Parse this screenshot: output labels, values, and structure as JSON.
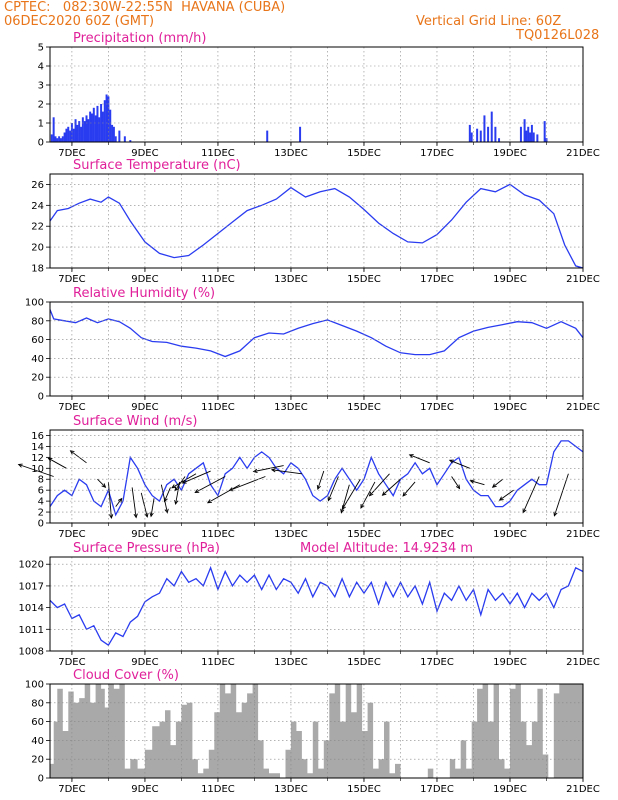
{
  "header": {
    "line1": "CPTEC:   082:30W-22:55N  HAVANA (CUBA)",
    "line2": "06DEC2020 60Z (GMT)",
    "right1": "Vertical Grid Line: 60Z",
    "right2": "TQ0126L028"
  },
  "colors": {
    "header": "#e8751a",
    "title": "#e0209a",
    "line": "#2a3cf0",
    "bar": "#2a3cf0",
    "cloud": "#a9a9a9"
  },
  "chart_data": [
    {
      "type": "bar",
      "title": "Precipitation (mm/h)",
      "x_ticks": [
        "7DEC",
        "9DEC",
        "11DEC",
        "13DEC",
        "15DEC",
        "17DEC",
        "19DEC",
        "21DEC"
      ],
      "x_range_days": [
        6.4,
        21.0
      ],
      "ylim": [
        0,
        5
      ],
      "y_ticks": [
        0,
        1,
        2,
        3,
        4,
        5
      ],
      "x": [
        6.45,
        6.5,
        6.55,
        6.6,
        6.65,
        6.7,
        6.75,
        6.8,
        6.85,
        6.9,
        6.95,
        7.0,
        7.05,
        7.1,
        7.15,
        7.2,
        7.25,
        7.3,
        7.35,
        7.4,
        7.45,
        7.5,
        7.55,
        7.6,
        7.65,
        7.7,
        7.75,
        7.8,
        7.85,
        7.9,
        7.95,
        8.0,
        8.05,
        8.1,
        8.15,
        8.2,
        8.3,
        8.45,
        8.6,
        12.35,
        13.25,
        17.9,
        17.95,
        18.1,
        18.2,
        18.3,
        18.4,
        18.5,
        18.6,
        18.7,
        19.3,
        19.4,
        19.45,
        19.5,
        19.55,
        19.6,
        19.65,
        19.75,
        19.95,
        20.0
      ],
      "values": [
        0.4,
        1.3,
        0.3,
        0.2,
        0.3,
        0.2,
        0.3,
        0.5,
        0.7,
        0.8,
        0.6,
        1.0,
        0.7,
        1.2,
        0.9,
        1.1,
        0.8,
        1.3,
        1.1,
        1.4,
        1.2,
        1.6,
        1.5,
        1.8,
        1.4,
        1.9,
        1.3,
        2.0,
        1.6,
        2.2,
        2.5,
        2.4,
        1.7,
        0.9,
        0.8,
        0.3,
        0.6,
        0.3,
        0.1,
        0.6,
        0.8,
        0.9,
        0.5,
        0.7,
        0.6,
        1.4,
        0.8,
        1.6,
        0.8,
        0.2,
        0.8,
        1.2,
        0.6,
        0.8,
        0.5,
        0.9,
        0.5,
        0.4,
        1.1,
        0.2
      ]
    },
    {
      "type": "line",
      "title": "Surface Temperature (nC)",
      "x_ticks": [
        "7DEC",
        "9DEC",
        "11DEC",
        "13DEC",
        "15DEC",
        "17DEC",
        "19DEC",
        "21DEC"
      ],
      "x_range_days": [
        6.4,
        21.0
      ],
      "ylim": [
        18,
        27
      ],
      "y_ticks": [
        18,
        20,
        22,
        24,
        26
      ],
      "x": [
        6.4,
        6.6,
        6.9,
        7.2,
        7.5,
        7.8,
        8.0,
        8.3,
        8.6,
        9.0,
        9.4,
        9.8,
        10.2,
        10.6,
        11.0,
        11.4,
        11.8,
        12.2,
        12.6,
        13.0,
        13.4,
        13.8,
        14.2,
        14.6,
        15.0,
        15.4,
        15.8,
        16.2,
        16.6,
        17.0,
        17.4,
        17.8,
        18.2,
        18.6,
        19.0,
        19.4,
        19.8,
        20.2,
        20.5,
        20.8,
        21.0
      ],
      "values": [
        22.5,
        23.5,
        23.7,
        24.2,
        24.6,
        24.3,
        24.8,
        24.2,
        22.5,
        20.5,
        19.4,
        19.0,
        19.2,
        20.2,
        21.3,
        22.4,
        23.5,
        24.0,
        24.6,
        25.7,
        24.8,
        25.3,
        25.6,
        24.8,
        23.6,
        22.3,
        21.3,
        20.5,
        20.4,
        21.2,
        22.6,
        24.3,
        25.6,
        25.3,
        26.0,
        25.0,
        24.5,
        23.2,
        20.2,
        18.2,
        18.0
      ]
    },
    {
      "type": "line",
      "title": "Relative Humidity (%)",
      "x_ticks": [
        "7DEC",
        "9DEC",
        "11DEC",
        "13DEC",
        "15DEC",
        "17DEC",
        "19DEC",
        "21DEC"
      ],
      "x_range_days": [
        6.4,
        21.0
      ],
      "ylim": [
        0,
        100
      ],
      "y_ticks": [
        0,
        20,
        40,
        60,
        80,
        100
      ],
      "x": [
        6.4,
        6.5,
        6.8,
        7.1,
        7.4,
        7.7,
        8.0,
        8.3,
        8.6,
        8.9,
        9.2,
        9.6,
        10.0,
        10.4,
        10.8,
        11.2,
        11.6,
        12.0,
        12.4,
        12.8,
        13.2,
        13.6,
        14.0,
        14.4,
        14.8,
        15.2,
        15.6,
        16.0,
        16.4,
        16.8,
        17.2,
        17.6,
        18.0,
        18.4,
        18.8,
        19.2,
        19.6,
        20.0,
        20.4,
        20.8,
        21.0
      ],
      "values": [
        92,
        82,
        80,
        78,
        83,
        78,
        82,
        79,
        72,
        62,
        58,
        57,
        53,
        51,
        48,
        42,
        48,
        62,
        67,
        66,
        72,
        77,
        81,
        75,
        69,
        62,
        53,
        46,
        44,
        44,
        48,
        62,
        69,
        73,
        76,
        79,
        78,
        72,
        79,
        72,
        62
      ]
    },
    {
      "type": "line",
      "title": "Surface Wind (m/s)",
      "x_ticks": [
        "7DEC",
        "9DEC",
        "11DEC",
        "13DEC",
        "15DEC",
        "17DEC",
        "19DEC",
        "21DEC"
      ],
      "x_range_days": [
        6.4,
        21.0
      ],
      "ylim": [
        0,
        17
      ],
      "y_ticks": [
        0,
        2,
        4,
        6,
        8,
        10,
        12,
        14,
        16
      ],
      "x": [
        6.4,
        6.6,
        6.8,
        7.0,
        7.2,
        7.4,
        7.6,
        7.8,
        8.0,
        8.2,
        8.4,
        8.6,
        8.8,
        9.0,
        9.2,
        9.4,
        9.6,
        9.8,
        10.0,
        10.2,
        10.4,
        10.6,
        10.8,
        11.0,
        11.2,
        11.4,
        11.6,
        11.8,
        12.0,
        12.2,
        12.4,
        12.6,
        12.8,
        13.0,
        13.2,
        13.4,
        13.6,
        13.8,
        14.0,
        14.2,
        14.4,
        14.6,
        14.8,
        15.0,
        15.2,
        15.4,
        15.6,
        15.8,
        16.0,
        16.2,
        16.4,
        16.6,
        16.8,
        17.0,
        17.2,
        17.4,
        17.6,
        17.8,
        18.0,
        18.2,
        18.4,
        18.6,
        18.8,
        19.0,
        19.2,
        19.4,
        19.6,
        19.8,
        20.0,
        20.2,
        20.4,
        20.6,
        20.8,
        21.0
      ],
      "values": [
        3,
        5,
        6,
        5,
        8,
        7,
        4,
        3,
        6,
        1.5,
        4,
        12,
        10,
        7,
        5,
        4,
        7,
        8,
        6,
        9,
        10,
        11,
        7,
        5,
        9,
        10,
        12,
        10,
        12,
        13,
        12,
        10,
        9,
        11,
        10,
        8,
        5,
        4,
        5,
        8,
        10,
        8,
        6,
        8,
        12,
        9,
        7,
        5,
        8,
        9,
        11,
        9,
        10,
        7,
        9,
        11,
        12,
        8,
        6,
        5,
        5,
        3,
        3,
        4,
        6,
        7,
        8,
        7,
        7,
        13,
        15,
        15,
        14,
        13
      ]
    },
    {
      "type": "line",
      "title": "Surface Pressure (hPa)",
      "annotation": "Model Altitude: 14.9234 m",
      "x_ticks": [
        "7DEC",
        "9DEC",
        "11DEC",
        "13DEC",
        "15DEC",
        "17DEC",
        "19DEC",
        "21DEC"
      ],
      "x_range_days": [
        6.4,
        21.0
      ],
      "ylim": [
        1008,
        1021
      ],
      "y_ticks": [
        1008,
        1011,
        1014,
        1017,
        1020
      ],
      "x": [
        6.4,
        6.6,
        6.8,
        7.0,
        7.2,
        7.4,
        7.6,
        7.8,
        8.0,
        8.2,
        8.4,
        8.6,
        8.8,
        9.0,
        9.2,
        9.4,
        9.6,
        9.8,
        10.0,
        10.2,
        10.4,
        10.6,
        10.8,
        11.0,
        11.2,
        11.4,
        11.6,
        11.8,
        12.0,
        12.2,
        12.4,
        12.6,
        12.8,
        13.0,
        13.2,
        13.4,
        13.6,
        13.8,
        14.0,
        14.2,
        14.4,
        14.6,
        14.8,
        15.0,
        15.2,
        15.4,
        15.6,
        15.8,
        16.0,
        16.2,
        16.4,
        16.6,
        16.8,
        17.0,
        17.2,
        17.4,
        17.6,
        17.8,
        18.0,
        18.2,
        18.4,
        18.6,
        18.8,
        19.0,
        19.2,
        19.4,
        19.6,
        19.8,
        20.0,
        20.2,
        20.4,
        20.6,
        20.8,
        21.0
      ],
      "values": [
        1015.0,
        1014.0,
        1014.5,
        1012.5,
        1013.0,
        1011.0,
        1011.5,
        1009.5,
        1008.8,
        1010.5,
        1010.0,
        1012.0,
        1012.8,
        1014.8,
        1015.5,
        1016.0,
        1018.0,
        1017.0,
        1019.0,
        1017.5,
        1018.0,
        1017.0,
        1019.5,
        1016.5,
        1019.0,
        1017.0,
        1018.5,
        1017.5,
        1018.5,
        1016.5,
        1018.5,
        1016.5,
        1018.0,
        1017.5,
        1016.0,
        1018.0,
        1015.5,
        1017.5,
        1017.0,
        1015.5,
        1018.0,
        1015.5,
        1017.5,
        1016.0,
        1017.5,
        1014.5,
        1017.5,
        1015.5,
        1017.5,
        1015.5,
        1017.0,
        1014.5,
        1017.5,
        1013.5,
        1016.0,
        1015.0,
        1017.0,
        1015.0,
        1016.5,
        1013.0,
        1016.5,
        1015.0,
        1016.0,
        1014.5,
        1016.0,
        1014.0,
        1016.0,
        1015.0,
        1016.0,
        1014.0,
        1016.5,
        1017.0,
        1019.5,
        1019.0
      ]
    },
    {
      "type": "area",
      "title": "Cloud Cover (%)",
      "x_ticks": [
        "7DEC",
        "9DEC",
        "11DEC",
        "13DEC",
        "15DEC",
        "17DEC",
        "19DEC",
        "21DEC"
      ],
      "x_range_days": [
        6.4,
        21.0
      ],
      "ylim": [
        0,
        100
      ],
      "y_ticks": [
        0,
        20,
        40,
        60,
        80,
        100
      ],
      "x": [
        6.4,
        6.5,
        6.6,
        6.75,
        6.9,
        7.05,
        7.2,
        7.35,
        7.5,
        7.65,
        7.8,
        7.9,
        8.0,
        8.15,
        8.3,
        8.45,
        8.6,
        8.8,
        9.0,
        9.2,
        9.4,
        9.55,
        9.7,
        9.85,
        10.0,
        10.15,
        10.3,
        10.45,
        10.6,
        10.75,
        10.9,
        11.05,
        11.2,
        11.35,
        11.5,
        11.65,
        11.8,
        11.95,
        12.1,
        12.25,
        12.4,
        12.55,
        12.7,
        12.85,
        13.0,
        13.15,
        13.3,
        13.45,
        13.6,
        13.75,
        13.9,
        14.05,
        14.2,
        14.35,
        14.5,
        14.65,
        14.8,
        14.95,
        15.1,
        15.25,
        15.4,
        15.55,
        15.7,
        15.85,
        16.0,
        16.15,
        16.3,
        16.45,
        16.6,
        16.75,
        16.9,
        17.05,
        17.2,
        17.35,
        17.5,
        17.65,
        17.8,
        17.95,
        18.1,
        18.25,
        18.4,
        18.55,
        18.7,
        18.85,
        19.0,
        19.15,
        19.3,
        19.45,
        19.6,
        19.75,
        19.9,
        20.05,
        20.2,
        20.35,
        20.5,
        20.65,
        20.8,
        21.0
      ],
      "values": [
        15,
        60,
        95,
        50,
        92,
        80,
        85,
        100,
        80,
        100,
        95,
        75,
        100,
        95,
        100,
        10,
        20,
        10,
        30,
        55,
        60,
        72,
        35,
        60,
        78,
        80,
        20,
        5,
        10,
        30,
        70,
        100,
        90,
        100,
        70,
        80,
        90,
        100,
        40,
        10,
        5,
        5,
        0,
        30,
        60,
        50,
        20,
        5,
        60,
        10,
        40,
        90,
        100,
        60,
        100,
        70,
        100,
        50,
        80,
        10,
        20,
        60,
        5,
        15,
        0,
        0,
        0,
        0,
        0,
        10,
        0,
        0,
        0,
        20,
        10,
        40,
        10,
        60,
        95,
        100,
        60,
        100,
        20,
        10,
        95,
        100,
        60,
        35,
        60,
        95,
        25,
        0,
        90,
        100,
        100,
        100,
        100,
        100
      ]
    }
  ]
}
